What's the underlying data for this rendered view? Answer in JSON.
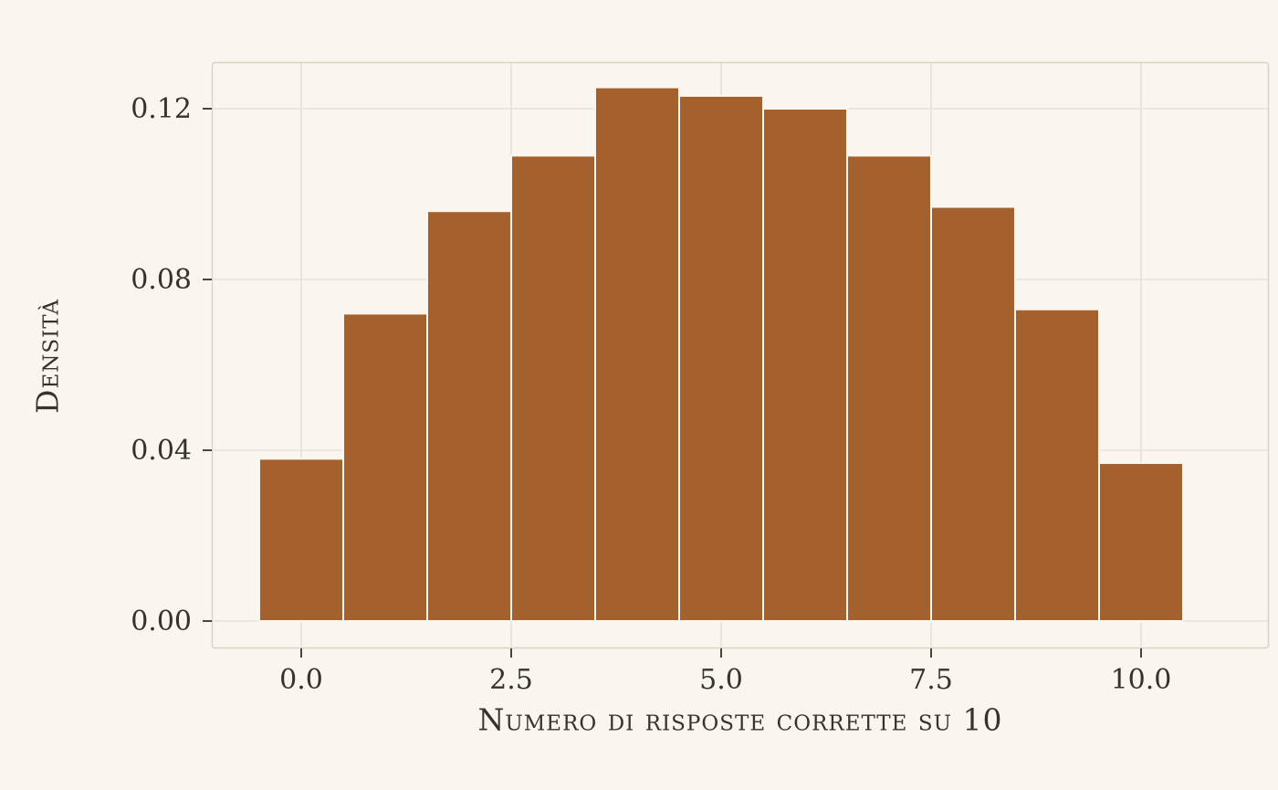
{
  "page": {
    "background": "#FAF6EF",
    "text_color": "#38322A"
  },
  "chart_data": {
    "type": "bar",
    "title": "",
    "xlabel": "Numero di risposte corrette su 10",
    "ylabel": "Densità",
    "categories": [
      0,
      1,
      2,
      3,
      4,
      5,
      6,
      7,
      8,
      9,
      10
    ],
    "values": [
      0.038,
      0.072,
      0.096,
      0.109,
      0.125,
      0.123,
      0.12,
      0.109,
      0.097,
      0.073,
      0.037
    ],
    "x_tick_labels": [
      "0.0",
      "2.5",
      "5.0",
      "7.5",
      "10.0"
    ],
    "x_tick_values": [
      0,
      2.5,
      5,
      7.5,
      10
    ],
    "y_tick_labels": [
      "0.00",
      "0.04",
      "0.08",
      "0.12"
    ],
    "y_tick_values": [
      0,
      0.04,
      0.08,
      0.12
    ],
    "xlim": [
      -1.07,
      11.5
    ],
    "ylim": [
      0,
      0.131
    ],
    "bar_width": 1.0,
    "grid": true,
    "legend": "none",
    "bar_color": "#A4612E",
    "bar_edge_color": "#FAF6EF",
    "grid_color": "#E7E2D5",
    "panel_border_color": "#D9D3C5",
    "tick_color": "#4A443A",
    "text_color": "#38322A"
  }
}
